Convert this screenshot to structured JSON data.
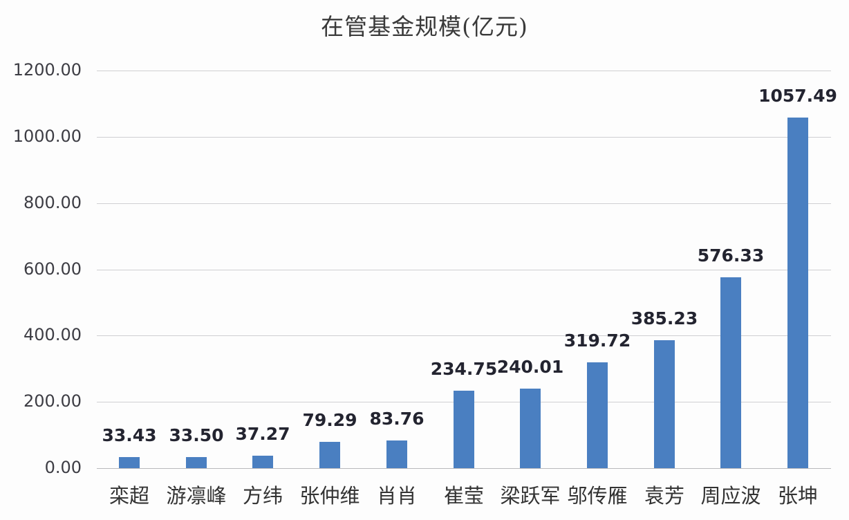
{
  "chart_data": {
    "type": "bar",
    "title": "在管基金规模(亿元)",
    "xlabel": "",
    "ylabel": "",
    "categories": [
      "栾超",
      "游凛峰",
      "方纬",
      "张仲维",
      "肖肖",
      "崔莹",
      "梁跃军",
      "邬传雁",
      "袁芳",
      "周应波",
      "张坤"
    ],
    "values": [
      33.43,
      33.5,
      37.27,
      79.29,
      83.76,
      234.75,
      240.01,
      319.72,
      385.23,
      576.33,
      1057.49
    ],
    "data_labels": [
      "33.43",
      "33.50",
      "37.27",
      "79.29",
      "83.76",
      "234.75",
      "240.01",
      "319.72",
      "385.23",
      "576.33",
      "1057.49"
    ],
    "ylim": [
      0,
      1200
    ],
    "yticks": [
      "0.00",
      "200.00",
      "400.00",
      "600.00",
      "800.00",
      "1000.00",
      "1200.00"
    ],
    "ytick_values": [
      0,
      200,
      400,
      600,
      800,
      1000,
      1200
    ],
    "grid": true,
    "legend": null,
    "bar_color": "#4a7fc1"
  }
}
